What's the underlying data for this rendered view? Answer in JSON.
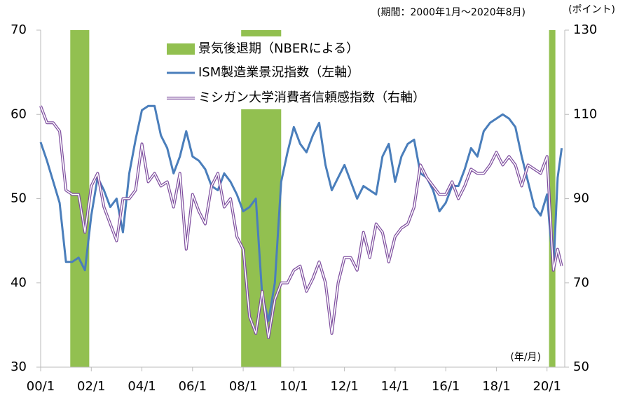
{
  "chart_data": {
    "type": "line",
    "annotations": [
      "(期間：2000年1月～2020年8月)",
      "(ポイント)",
      "(年/月)"
    ],
    "x": [
      2000,
      2000.25,
      2000.5,
      2000.75,
      2001,
      2001.25,
      2001.5,
      2001.75,
      2002,
      2002.25,
      2002.5,
      2002.75,
      2003,
      2003.25,
      2003.5,
      2003.75,
      2004,
      2004.25,
      2004.5,
      2004.75,
      2005,
      2005.25,
      2005.5,
      2005.75,
      2006,
      2006.25,
      2006.5,
      2006.75,
      2007,
      2007.25,
      2007.5,
      2007.75,
      2008,
      2008.25,
      2008.5,
      2008.75,
      2009,
      2009.25,
      2009.5,
      2009.75,
      2010,
      2010.25,
      2010.5,
      2010.75,
      2011,
      2011.25,
      2011.5,
      2011.75,
      2012,
      2012.25,
      2012.5,
      2012.75,
      2013,
      2013.25,
      2013.5,
      2013.75,
      2014,
      2014.25,
      2014.5,
      2014.75,
      2015,
      2015.25,
      2015.5,
      2015.75,
      2016,
      2016.25,
      2016.5,
      2016.75,
      2017,
      2017.25,
      2017.5,
      2017.75,
      2018,
      2018.25,
      2018.5,
      2018.75,
      2019,
      2019.25,
      2019.5,
      2019.75,
      2020,
      2020.25,
      2020.42,
      2020.58
    ],
    "recessions": {
      "name": "景気後退期（NBERによる）",
      "color": "#92c050",
      "periods": [
        [
          2001.17,
          2001.92
        ],
        [
          2007.92,
          2009.5
        ],
        [
          2020.08,
          2020.33
        ]
      ]
    },
    "series": [
      {
        "name": "ISM製造業景況指数（左軸）",
        "color": "#4a7ebb",
        "axis": "y",
        "values": [
          56.7,
          54.5,
          52,
          49.5,
          42.5,
          42.5,
          43,
          41.5,
          48,
          52.5,
          51,
          49,
          50,
          46,
          53,
          57,
          60.5,
          61,
          61,
          57.5,
          56,
          53,
          55,
          58,
          55,
          54.5,
          53.5,
          51.5,
          51,
          53,
          52,
          50.5,
          48.5,
          49,
          50,
          38.5,
          35.5,
          40,
          52,
          55.5,
          58.5,
          56.5,
          55.5,
          57.5,
          59,
          54,
          51,
          52.5,
          54,
          52,
          50,
          51.5,
          51,
          50.5,
          55,
          56.5,
          52,
          55,
          56.5,
          57,
          53,
          52.5,
          51,
          48.5,
          49.5,
          51.5,
          51.5,
          53.5,
          56,
          55,
          58,
          59,
          59.5,
          60,
          59.5,
          58.5,
          55,
          52,
          49,
          48,
          50.5,
          41.5,
          52.5,
          56
        ]
      },
      {
        "name": "ミシガン大学消費者信頼感指数（右軸）",
        "color": "#7f4f9f",
        "axis": "y2",
        "values": [
          112,
          108,
          108,
          106,
          92,
          91,
          91,
          82,
          93,
          96,
          88,
          84,
          80,
          90,
          90,
          92,
          103,
          94,
          96,
          93,
          94,
          88,
          96,
          78,
          91,
          87,
          84,
          93,
          96,
          88,
          90,
          81,
          78,
          62,
          58,
          68,
          57,
          66,
          70,
          70,
          73,
          74,
          68,
          71,
          75,
          70,
          58,
          70,
          76,
          76,
          73,
          82,
          76,
          84,
          82,
          75,
          81,
          83,
          84,
          88,
          98,
          95,
          93,
          91,
          91,
          94,
          90,
          93,
          97,
          96,
          96,
          98,
          101,
          98,
          100,
          98,
          93,
          98,
          97,
          96,
          100,
          73,
          78,
          74
        ]
      }
    ],
    "xlim": [
      2000,
      2020.7
    ],
    "xticks": [
      {
        "value": 2000,
        "label": "00/1"
      },
      {
        "value": 2002,
        "label": "02/1"
      },
      {
        "value": 2004,
        "label": "04/1"
      },
      {
        "value": 2006,
        "label": "06/1"
      },
      {
        "value": 2008,
        "label": "08/1"
      },
      {
        "value": 2010,
        "label": "10/1"
      },
      {
        "value": 2012,
        "label": "12/1"
      },
      {
        "value": 2014,
        "label": "14/1"
      },
      {
        "value": 2016,
        "label": "16/1"
      },
      {
        "value": 2018,
        "label": "18/1"
      },
      {
        "value": 2020,
        "label": "20/1"
      }
    ],
    "ylim": [
      30,
      70
    ],
    "yticks": [
      30,
      40,
      50,
      60,
      70
    ],
    "y2lim": [
      50,
      130
    ],
    "y2ticks": [
      50,
      70,
      90,
      110,
      130
    ]
  }
}
